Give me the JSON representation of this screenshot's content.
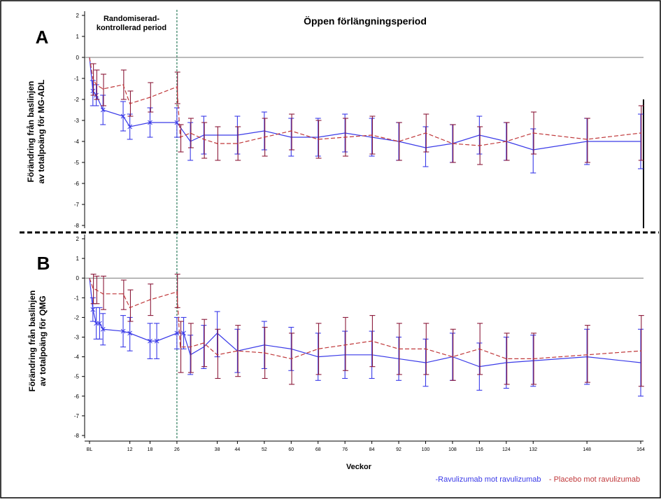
{
  "colors": {
    "blue": "#3a3ae8",
    "red": "#c0393b",
    "darkred": "#8b1a3a",
    "green": "#2e7d5e",
    "gray": "#777777"
  },
  "shared": {
    "x_ticks": [
      "BL",
      "12",
      "18",
      "26",
      "38",
      "44",
      "52",
      "60",
      "68",
      "76",
      "84",
      "92",
      "100",
      "108",
      "116",
      "124",
      "132",
      "148",
      "164"
    ],
    "x_tick_weeks": [
      0,
      12,
      18,
      26,
      38,
      44,
      52,
      60,
      68,
      76,
      84,
      92,
      100,
      108,
      116,
      124,
      132,
      148,
      164
    ],
    "xlabel": "Veckor",
    "y_ticks": [
      "2",
      "1",
      "0",
      "-1",
      "-2",
      "-3",
      "-4",
      "-5",
      "-6",
      "-7",
      "-8"
    ],
    "y_tick_values": [
      2,
      1,
      0,
      -1,
      -2,
      -3,
      -4,
      -5,
      -6,
      -7,
      -8
    ],
    "ylim": [
      -8,
      2
    ],
    "xlim": [
      0,
      164
    ],
    "divider_week": 26,
    "period_rc": "Randomiserad-\nkontrollerad period",
    "period_rc_line1": "Randomiserad-",
    "period_rc_line2": "kontrollerad period",
    "period_ole": "Öppen förlängningsperiod",
    "legend_blue": "-Ravulizumab mot ravulizumab",
    "legend_red": "- Placebo mot ravulizumab"
  },
  "chart_data": [
    {
      "type": "line",
      "panel": "A",
      "title": "",
      "ylabel_line1": "Förändring från baslinjen",
      "ylabel_line2": "av totalpoäng för MG-ADL",
      "xlabel": "Veckor",
      "ylim": [
        -8,
        2
      ],
      "series": [
        {
          "name": "Ravulizumab mot ravulizumab",
          "x": [
            0,
            1,
            2,
            4,
            10,
            12,
            18,
            26,
            30,
            34,
            44,
            52,
            60,
            68,
            76,
            84,
            92,
            100,
            108,
            116,
            124,
            132,
            148,
            164
          ],
          "y": [
            0,
            -1.6,
            -1.8,
            -2.5,
            -2.8,
            -3.3,
            -3.1,
            -3.1,
            -4.0,
            -3.7,
            -3.7,
            -3.5,
            -3.8,
            -3.8,
            -3.6,
            -3.8,
            -4.0,
            -4.3,
            -4.1,
            -3.7,
            -4.0,
            -4.4,
            -4.0,
            -4.0
          ],
          "lower": [
            0,
            -2.3,
            -2.3,
            -3.2,
            -3.5,
            -3.9,
            -3.8,
            -3.8,
            -4.9,
            -4.6,
            -4.6,
            -4.4,
            -4.7,
            -4.7,
            -4.5,
            -4.7,
            -4.9,
            -5.2,
            -5.0,
            -4.6,
            -4.9,
            -5.5,
            -5.1,
            -5.3
          ],
          "upper": [
            0,
            -1.1,
            -1.3,
            -1.8,
            -2.1,
            -2.7,
            -2.4,
            -2.4,
            -3.1,
            -2.8,
            -2.8,
            -2.6,
            -2.9,
            -2.9,
            -2.7,
            -2.9,
            -3.1,
            -3.3,
            -3.2,
            -2.8,
            -3.1,
            -3.4,
            -2.9,
            -2.7
          ]
        },
        {
          "name": "Placebo mot ravulizumab",
          "x": [
            0,
            1,
            2,
            4,
            10,
            12,
            18,
            26,
            27,
            30,
            34,
            38,
            44,
            52,
            60,
            68,
            76,
            84,
            92,
            100,
            108,
            116,
            124,
            132,
            148,
            164
          ],
          "y": [
            0,
            -1.0,
            -1.3,
            -1.5,
            -1.3,
            -2.2,
            -1.9,
            -1.4,
            -3.8,
            -3.6,
            -3.9,
            -4.1,
            -4.1,
            -3.8,
            -3.5,
            -3.9,
            -3.8,
            -3.7,
            -4.0,
            -3.6,
            -4.1,
            -4.2,
            -4.0,
            -3.6,
            -3.9,
            -3.6
          ],
          "lower": [
            0,
            -1.8,
            -2.0,
            -2.3,
            -2.0,
            -2.8,
            -2.6,
            -2.2,
            -4.5,
            -4.3,
            -4.8,
            -4.9,
            -4.9,
            -4.7,
            -4.4,
            -4.8,
            -4.7,
            -4.6,
            -4.9,
            -4.5,
            -5.0,
            -5.1,
            -4.9,
            -4.6,
            -5.0,
            -4.9
          ],
          "upper": [
            0,
            -0.3,
            -0.6,
            -0.8,
            -0.6,
            -1.6,
            -1.2,
            -0.7,
            -3.2,
            -2.9,
            -3.1,
            -3.3,
            -3.3,
            -2.9,
            -2.7,
            -3.0,
            -2.9,
            -2.8,
            -3.1,
            -2.7,
            -3.2,
            -3.3,
            -3.1,
            -2.6,
            -2.9,
            -2.3
          ]
        }
      ]
    },
    {
      "type": "line",
      "panel": "B",
      "title": "",
      "ylabel_line1": "Förändring från baslinjen",
      "ylabel_line2": "av totalpoäng för QMG",
      "xlabel": "Veckor",
      "ylim": [
        -8,
        2
      ],
      "series": [
        {
          "name": "Ravulizumab mot ravulizumab",
          "x": [
            0,
            1,
            2,
            3,
            4,
            10,
            12,
            18,
            20,
            26,
            28,
            30,
            34,
            38,
            44,
            52,
            60,
            68,
            76,
            84,
            92,
            100,
            108,
            116,
            124,
            132,
            148,
            164
          ],
          "y": [
            0,
            -1.6,
            -2.3,
            -2.3,
            -2.6,
            -2.7,
            -2.8,
            -3.2,
            -3.2,
            -2.8,
            -2.8,
            -3.9,
            -3.5,
            -2.8,
            -3.7,
            -3.4,
            -3.6,
            -4.0,
            -3.9,
            -3.9,
            -4.1,
            -4.3,
            -4.0,
            -4.5,
            -4.3,
            -4.2,
            -4.0,
            -4.3
          ],
          "lower": [
            0,
            -2.2,
            -3.1,
            -3.1,
            -3.4,
            -3.5,
            -3.7,
            -4.1,
            -4.1,
            -3.6,
            -3.6,
            -4.9,
            -4.6,
            -4.0,
            -4.8,
            -4.6,
            -4.7,
            -5.2,
            -5.1,
            -5.1,
            -5.2,
            -5.5,
            -5.2,
            -5.7,
            -5.6,
            -5.5,
            -5.4,
            -6.0
          ],
          "upper": [
            0,
            -1.0,
            -1.5,
            -1.5,
            -1.8,
            -1.9,
            -2.0,
            -2.3,
            -2.3,
            -2.0,
            -2.0,
            -2.9,
            -2.4,
            -1.7,
            -2.6,
            -2.2,
            -2.5,
            -2.8,
            -2.7,
            -2.7,
            -3.0,
            -3.1,
            -2.8,
            -3.3,
            -3.0,
            -2.9,
            -2.6,
            -2.6
          ]
        },
        {
          "name": "Placebo mot ravulizumab",
          "x": [
            0,
            1,
            2,
            4,
            10,
            12,
            18,
            26,
            27,
            30,
            34,
            38,
            44,
            52,
            60,
            68,
            76,
            84,
            92,
            100,
            108,
            116,
            124,
            132,
            148,
            164
          ],
          "y": [
            0,
            -0.5,
            -0.6,
            -0.8,
            -0.8,
            -1.5,
            -1.1,
            -0.7,
            -3.5,
            -3.5,
            -3.3,
            -3.9,
            -3.7,
            -3.8,
            -4.1,
            -3.6,
            -3.4,
            -3.2,
            -3.6,
            -3.6,
            -4.0,
            -3.6,
            -4.1,
            -4.1,
            -3.9,
            -3.7
          ],
          "lower": [
            0,
            -1.3,
            -1.3,
            -1.6,
            -1.6,
            -2.2,
            -1.9,
            -1.5,
            -4.8,
            -4.8,
            -4.5,
            -5.1,
            -5.0,
            -5.1,
            -5.4,
            -4.9,
            -4.7,
            -4.5,
            -4.9,
            -4.9,
            -5.2,
            -4.9,
            -5.4,
            -5.4,
            -5.3,
            -5.5
          ],
          "upper": [
            0,
            0.2,
            0.1,
            0.1,
            -0.1,
            -0.6,
            -0.3,
            0.2,
            -2.2,
            -2.3,
            -2.1,
            -2.6,
            -2.4,
            -2.5,
            -2.8,
            -2.3,
            -2.0,
            -1.9,
            -2.3,
            -2.3,
            -2.6,
            -2.3,
            -2.8,
            -2.8,
            -2.4,
            -1.9
          ]
        }
      ]
    }
  ]
}
